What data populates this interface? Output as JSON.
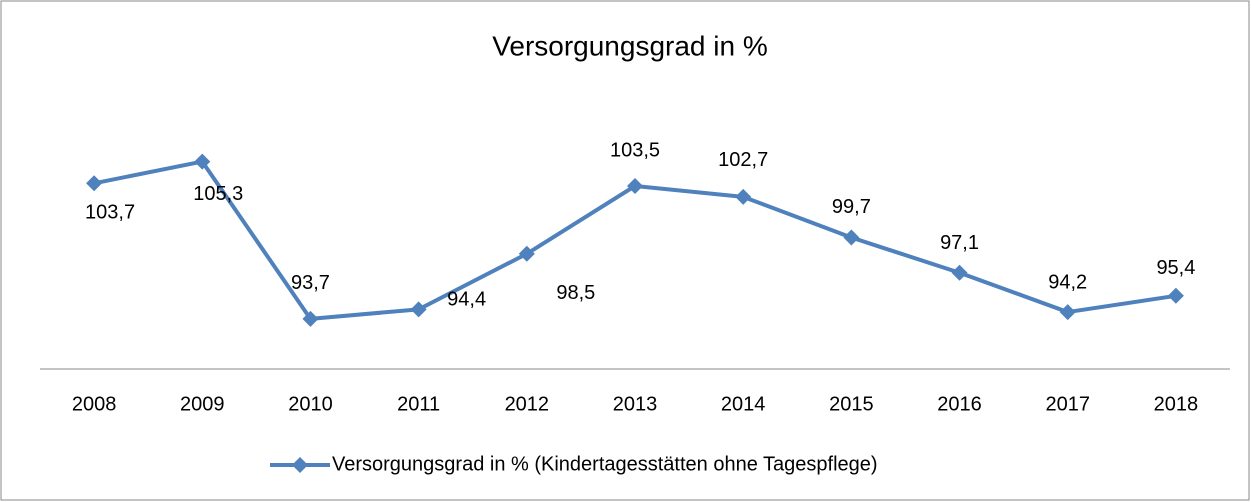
{
  "chart_data": {
    "type": "line",
    "title": "Versorgungsgrad in %",
    "categories": [
      "2008",
      "2009",
      "2010",
      "2011",
      "2012",
      "2013",
      "2014",
      "2015",
      "2016",
      "2017",
      "2018"
    ],
    "series": [
      {
        "name": "Versorgungsgrad in % (Kindertagesstätten ohne Tagespflege)",
        "color": "#4f81bd",
        "values": [
          103.7,
          105.3,
          93.7,
          94.4,
          98.5,
          103.5,
          102.7,
          99.7,
          97.1,
          94.2,
          95.4
        ],
        "value_labels": [
          "103,7",
          "105,3",
          "93,7",
          "94,4",
          "98,5",
          "103,5",
          "102,7",
          "99,7",
          "97,1",
          "94,2",
          "95,4"
        ]
      }
    ],
    "ylim": [
      90,
      108
    ],
    "grid": false,
    "legend": "bottom"
  }
}
